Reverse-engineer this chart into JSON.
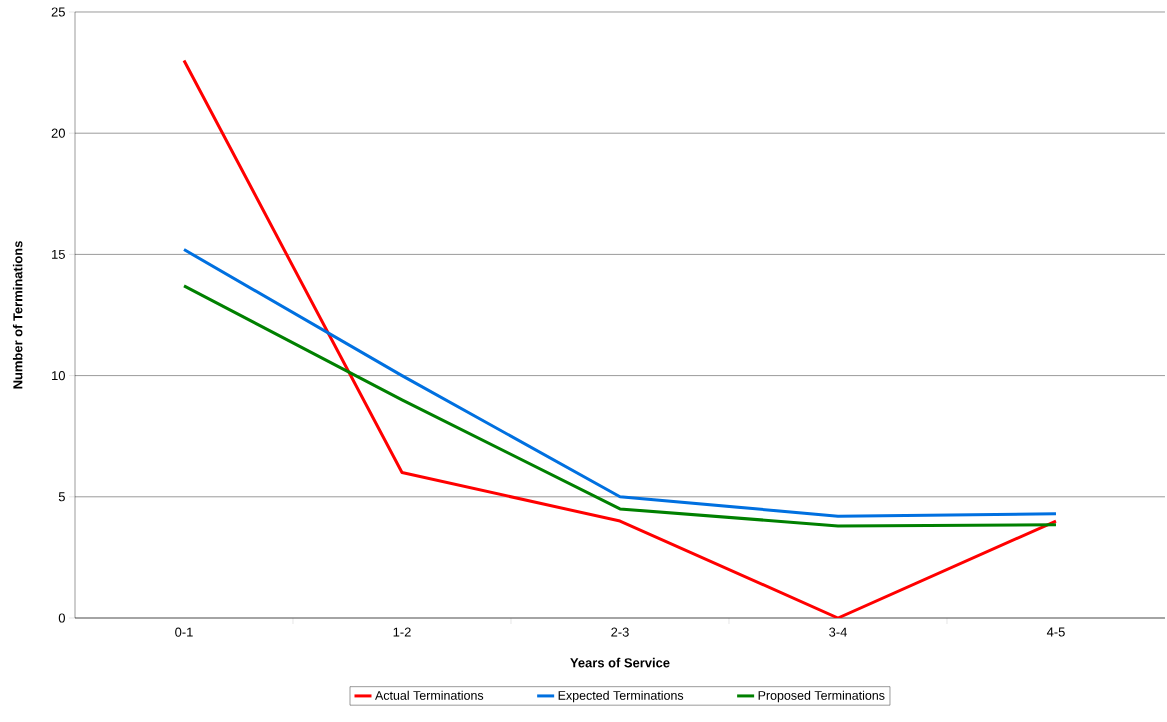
{
  "chart_data": {
    "type": "line",
    "xlabel": "Years of Service",
    "ylabel": "Number of Terminations",
    "categories": [
      "0-1",
      "1-2",
      "2-3",
      "3-4",
      "4-5"
    ],
    "series": [
      {
        "name": "Actual Terminations",
        "color": "#ff0000",
        "values": [
          23,
          6,
          4,
          0,
          4
        ]
      },
      {
        "name": "Expected Terminations",
        "color": "#0070e0",
        "values": [
          15.2,
          10.0,
          5.0,
          4.2,
          4.3
        ]
      },
      {
        "name": "Proposed Terminations",
        "color": "#008000",
        "values": [
          13.7,
          9.0,
          4.5,
          3.8,
          3.85
        ]
      }
    ],
    "ylim": [
      0,
      25
    ],
    "yticks": [
      0,
      5,
      10,
      15,
      20,
      25
    ],
    "grid": "y",
    "legend": "bottom",
    "marker": "none",
    "line_style": "solid"
  }
}
